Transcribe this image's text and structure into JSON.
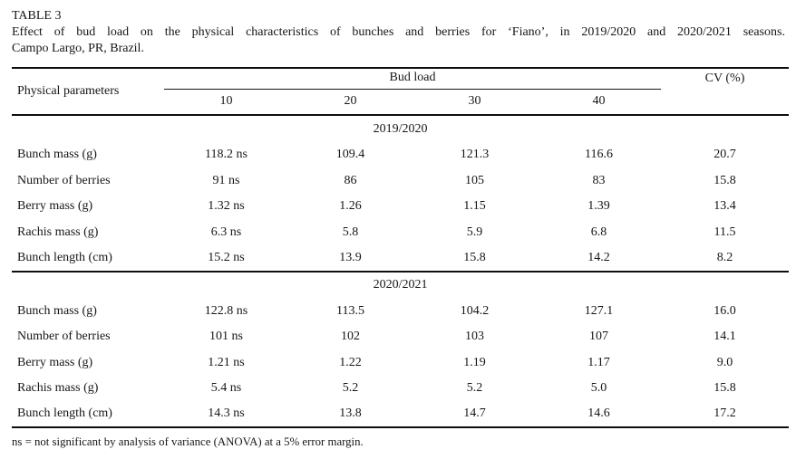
{
  "title": "TABLE 3",
  "caption": "Effect of bud load on the physical characteristics of bunches and berries for ‘Fiano’, in 2019/2020 and 2020/2021 seasons.",
  "caption_location": "Campo Largo, PR, Brazil.",
  "table": {
    "param_header": "Physical parameters",
    "group_header": "Bud load",
    "cv_header": "CV (%)",
    "bud_loads": [
      "10",
      "20",
      "30",
      "40"
    ],
    "sections": [
      {
        "season": "2019/2020",
        "rows": [
          {
            "parameter": "Bunch mass (g)",
            "values": [
              "118.2 ns",
              "109.4",
              "121.3",
              "116.6"
            ],
            "cv": "20.7"
          },
          {
            "parameter": "Number of berries",
            "values": [
              "91 ns",
              "86",
              "105",
              "83"
            ],
            "cv": "15.8"
          },
          {
            "parameter": "Berry mass (g)",
            "values": [
              "1.32 ns",
              "1.26",
              "1.15",
              "1.39"
            ],
            "cv": "13.4"
          },
          {
            "parameter": "Rachis mass (g)",
            "values": [
              "6.3 ns",
              "5.8",
              "5.9",
              "6.8"
            ],
            "cv": "11.5"
          },
          {
            "parameter": "Bunch length (cm)",
            "values": [
              "15.2 ns",
              "13.9",
              "15.8",
              "14.2"
            ],
            "cv": "8.2"
          }
        ]
      },
      {
        "season": "2020/2021",
        "rows": [
          {
            "parameter": "Bunch mass (g)",
            "values": [
              "122.8 ns",
              "113.5",
              "104.2",
              "127.1"
            ],
            "cv": "16.0"
          },
          {
            "parameter": "Number of berries",
            "values": [
              "101 ns",
              "102",
              "103",
              "107"
            ],
            "cv": "14.1"
          },
          {
            "parameter": "Berry mass (g)",
            "values": [
              "1.21 ns",
              "1.22",
              "1.19",
              "1.17"
            ],
            "cv": "9.0"
          },
          {
            "parameter": "Rachis mass (g)",
            "values": [
              "5.4 ns",
              "5.2",
              "5.2",
              "5.0"
            ],
            "cv": "15.8"
          },
          {
            "parameter": "Bunch length (cm)",
            "values": [
              "14.3 ns",
              "13.8",
              "14.7",
              "14.6"
            ],
            "cv": "17.2"
          }
        ]
      }
    ]
  },
  "footnote": "ns = not significant by analysis of variance (ANOVA) at a 5% error margin."
}
